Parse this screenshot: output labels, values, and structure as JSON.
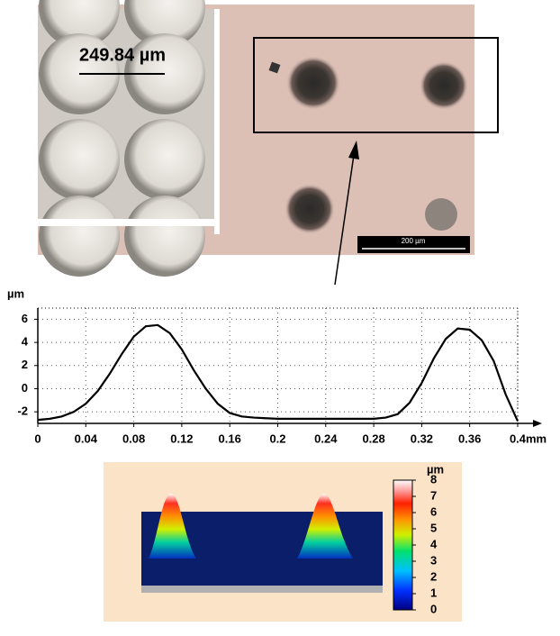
{
  "micrograph": {
    "inset_label": "249.84 µm",
    "scale_bar_label": "200 µm"
  },
  "chart_data": [
    {
      "type": "line",
      "y_label": "µm",
      "x_label": "mm",
      "x": [
        0,
        0.01,
        0.02,
        0.03,
        0.04,
        0.05,
        0.06,
        0.07,
        0.08,
        0.09,
        0.1,
        0.11,
        0.12,
        0.13,
        0.14,
        0.15,
        0.16,
        0.17,
        0.18,
        0.19,
        0.2,
        0.21,
        0.22,
        0.23,
        0.24,
        0.25,
        0.26,
        0.27,
        0.28,
        0.29,
        0.3,
        0.31,
        0.32,
        0.33,
        0.34,
        0.35,
        0.36,
        0.37,
        0.38,
        0.39,
        0.4
      ],
      "series": [
        {
          "color": "#000000",
          "values": [
            -2.7,
            -2.6,
            -2.4,
            -2.0,
            -1.3,
            -0.2,
            1.3,
            3.0,
            4.5,
            5.4,
            5.5,
            4.8,
            3.4,
            1.6,
            0,
            -1.3,
            -2.1,
            -2.4,
            -2.5,
            -2.55,
            -2.6,
            -2.6,
            -2.6,
            -2.6,
            -2.6,
            -2.6,
            -2.6,
            -2.6,
            -2.6,
            -2.5,
            -2.2,
            -1.2,
            0.5,
            2.6,
            4.3,
            5.2,
            5.1,
            4.2,
            2.4,
            -0.5,
            -2.8
          ]
        }
      ],
      "xlim": [
        0,
        0.4
      ],
      "xticks": [
        0,
        0.04,
        0.08,
        0.12,
        0.16,
        0.2,
        0.24,
        0.28,
        0.32,
        0.36,
        0.4
      ],
      "ylim": [
        -3,
        6.5
      ],
      "yticks": [
        -2,
        0,
        2,
        4,
        6
      ],
      "grid": true
    },
    {
      "type": "colorbar",
      "title": "µm",
      "ylim": [
        0,
        8
      ],
      "yticks": [
        0,
        1,
        2,
        3,
        4,
        5,
        6,
        7,
        8
      ]
    }
  ]
}
